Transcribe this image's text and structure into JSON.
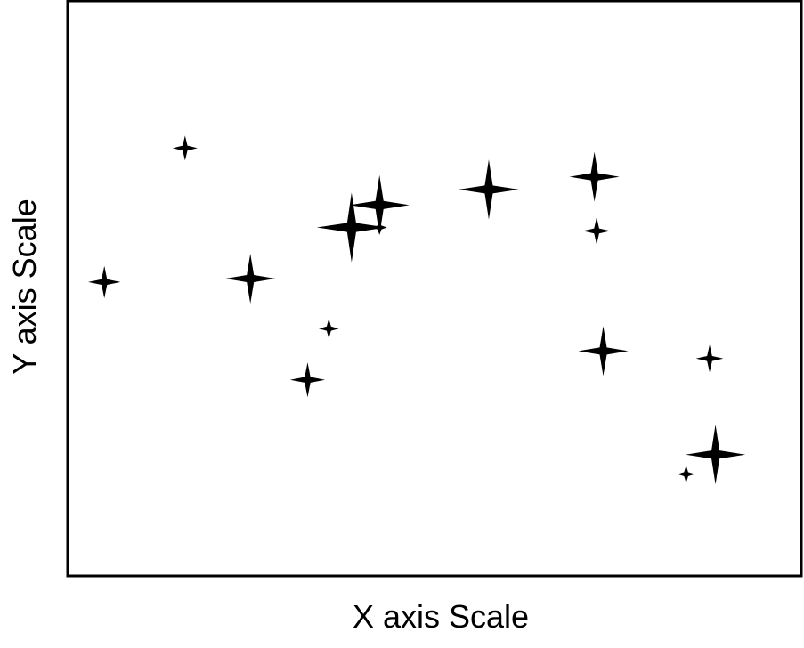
{
  "chart_data": {
    "type": "scatter",
    "title": "",
    "xlabel": "X axis Scale",
    "ylabel": "Y axis Scale",
    "xlim": [
      0,
      100
    ],
    "ylim": [
      0,
      100
    ],
    "grid": false,
    "marker": "four-point-star",
    "marker_color": "#000000",
    "frame_color": "#000000",
    "points": [
      {
        "x": 5.0,
        "y": 51.1,
        "size": 1.3
      },
      {
        "x": 16.0,
        "y": 74.4,
        "size": 1.0
      },
      {
        "x": 24.9,
        "y": 51.7,
        "size": 2.0
      },
      {
        "x": 32.7,
        "y": 34.1,
        "size": 1.4
      },
      {
        "x": 35.6,
        "y": 43.0,
        "size": 0.8
      },
      {
        "x": 38.7,
        "y": 60.6,
        "size": 2.8
      },
      {
        "x": 42.5,
        "y": 64.5,
        "size": 2.4
      },
      {
        "x": 42.5,
        "y": 60.6,
        "size": 0.6
      },
      {
        "x": 57.4,
        "y": 67.2,
        "size": 2.4
      },
      {
        "x": 71.8,
        "y": 69.4,
        "size": 2.0
      },
      {
        "x": 72.1,
        "y": 60.0,
        "size": 1.1
      },
      {
        "x": 73.0,
        "y": 39.1,
        "size": 2.0
      },
      {
        "x": 87.5,
        "y": 37.8,
        "size": 1.1
      },
      {
        "x": 88.3,
        "y": 21.1,
        "size": 2.4
      },
      {
        "x": 84.3,
        "y": 17.7,
        "size": 0.7
      }
    ]
  }
}
